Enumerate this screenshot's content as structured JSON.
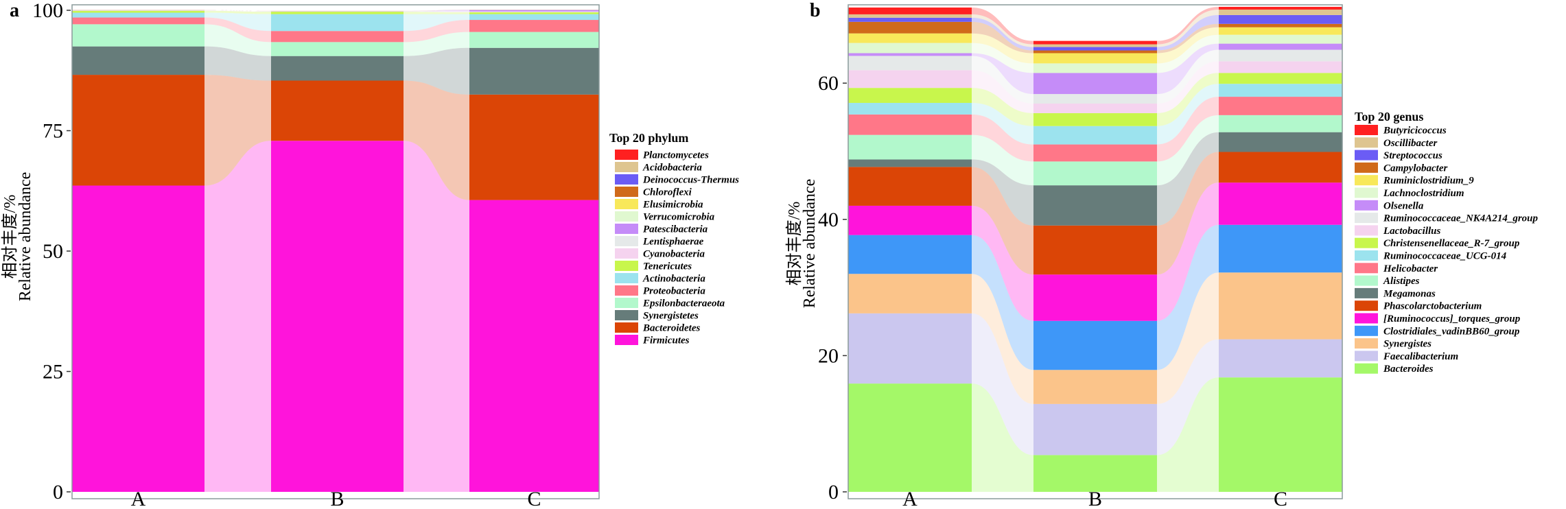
{
  "chart_data": [
    {
      "type": "bar",
      "subtype": "stacked-alluvial",
      "panel_label": "a",
      "title": "",
      "xlabel": "",
      "ylabel_lines": [
        "相对丰度/%",
        "Relative abundance"
      ],
      "ylim": [
        0,
        100
      ],
      "yticks": [
        0,
        25,
        50,
        75,
        100
      ],
      "categories": [
        "A",
        "B",
        "C"
      ],
      "grid": false,
      "legend_title": "Top 20 phylum",
      "legend_position": "right",
      "series": [
        {
          "name": "Firmicutes",
          "color": "#FF14DB",
          "values": [
            63.6,
            72.9,
            60.6
          ]
        },
        {
          "name": "Bacteroidetes",
          "color": "#DB4506",
          "values": [
            23.0,
            12.5,
            21.9
          ]
        },
        {
          "name": "Synergistetes",
          "color": "#667C7A",
          "values": [
            5.9,
            5.1,
            9.7
          ]
        },
        {
          "name": "Epsilonbacteraeota",
          "color": "#B2F8CC",
          "values": [
            4.6,
            2.9,
            3.3
          ]
        },
        {
          "name": "Proteobacteria",
          "color": "#FF7788",
          "values": [
            1.4,
            2.3,
            2.5
          ]
        },
        {
          "name": "Actinobacteria",
          "color": "#9CE3EE",
          "values": [
            1.0,
            3.5,
            1.2
          ]
        },
        {
          "name": "Tenericutes",
          "color": "#C8F64C",
          "values": [
            0.4,
            0.5,
            0.4
          ]
        },
        {
          "name": "Cyanobacteria",
          "color": "#F5D3EF",
          "values": [
            0.05,
            0.05,
            0.1
          ]
        },
        {
          "name": "Lentisphaerae",
          "color": "#E5E9E9",
          "values": [
            0.03,
            0.03,
            0.05
          ]
        },
        {
          "name": "Patescibacteria",
          "color": "#C58CF8",
          "values": [
            0.02,
            0.02,
            0.3
          ]
        },
        {
          "name": "Verrucomicrobia",
          "color": "#E0F8D0",
          "values": [
            0.02,
            0.02,
            0.02
          ]
        },
        {
          "name": "Elusimicrobia",
          "color": "#F8E85A",
          "values": [
            0.01,
            0.01,
            0.01
          ]
        },
        {
          "name": "Chloroflexi",
          "color": "#D06A1A",
          "values": [
            0.01,
            0.01,
            0.01
          ]
        },
        {
          "name": "Deinococcus-Thermus",
          "color": "#6B5CF5",
          "values": [
            0.01,
            0.01,
            0.01
          ]
        },
        {
          "name": "Acidobacteria",
          "color": "#DEC590",
          "values": [
            0.01,
            0.01,
            0.01
          ]
        },
        {
          "name": "Planctomycetes",
          "color": "#FF2020",
          "values": [
            0.01,
            0.01,
            0.01
          ]
        }
      ]
    },
    {
      "type": "bar",
      "subtype": "stacked-alluvial",
      "panel_label": "b",
      "title": "",
      "xlabel": "",
      "ylabel_lines": [
        "相对丰度/%",
        "Relative abundance"
      ],
      "ylim": [
        0,
        71.5
      ],
      "yticks": [
        0,
        20,
        40,
        60
      ],
      "categories": [
        "A",
        "B",
        "C"
      ],
      "grid": false,
      "legend_title": "Top 20 genus",
      "legend_position": "right",
      "series": [
        {
          "name": "Bacteroides",
          "color": "#A4F868",
          "values": [
            15.9,
            5.4,
            16.8
          ]
        },
        {
          "name": "Faecalibacterium",
          "color": "#CBC7EF",
          "values": [
            10.3,
            7.5,
            5.6
          ]
        },
        {
          "name": "Synergistes",
          "color": "#FBC48A",
          "values": [
            5.8,
            5.0,
            9.8
          ]
        },
        {
          "name": "Clostridiales_vadinBB60_group",
          "color": "#3E97F8",
          "values": [
            5.7,
            7.2,
            7.0
          ]
        },
        {
          "name": "[Ruminococcus]_torques_group",
          "color": "#FF14DB",
          "values": [
            4.3,
            6.8,
            6.2
          ]
        },
        {
          "name": "Phascolarctobacterium",
          "color": "#DB4506",
          "values": [
            5.7,
            7.2,
            4.5
          ]
        },
        {
          "name": "Megamonas",
          "color": "#667C7A",
          "values": [
            1.1,
            5.9,
            2.9
          ]
        },
        {
          "name": "Alistipes",
          "color": "#B2F8CC",
          "values": [
            3.6,
            3.5,
            2.5
          ]
        },
        {
          "name": "Helicobacter",
          "color": "#FF7788",
          "values": [
            3.0,
            2.5,
            2.7
          ]
        },
        {
          "name": "Ruminococcaceae_UCG-014",
          "color": "#9CE3EE",
          "values": [
            1.7,
            2.7,
            1.9
          ]
        },
        {
          "name": "Christensenellaceae_R-7_group",
          "color": "#C8F64C",
          "values": [
            2.2,
            1.9,
            1.6
          ]
        },
        {
          "name": "Lactobacillus",
          "color": "#F5D3EF",
          "values": [
            2.6,
            1.4,
            1.7
          ]
        },
        {
          "name": "Ruminococcaceae_NK4A214_group",
          "color": "#E5E9E9",
          "values": [
            2.1,
            1.4,
            1.7
          ]
        },
        {
          "name": "Olsenella",
          "color": "#C58CF8",
          "values": [
            0.4,
            3.1,
            0.9
          ]
        },
        {
          "name": "Lachnoclostridium",
          "color": "#E0F8D0",
          "values": [
            1.5,
            1.4,
            1.3
          ]
        },
        {
          "name": "Ruminiclostridium_9",
          "color": "#F8E85A",
          "values": [
            1.4,
            1.5,
            1.1
          ]
        },
        {
          "name": "Campylobacter",
          "color": "#D06A1A",
          "values": [
            1.7,
            0.4,
            0.5
          ]
        },
        {
          "name": "Streptococcus",
          "color": "#6B5CF5",
          "values": [
            0.6,
            0.5,
            1.3
          ]
        },
        {
          "name": "Oscillibacter",
          "color": "#DEC590",
          "values": [
            0.5,
            0.4,
            0.8
          ]
        },
        {
          "name": "Butyricicoccus",
          "color": "#FF2020",
          "values": [
            1.0,
            0.5,
            0.4
          ]
        }
      ]
    }
  ]
}
